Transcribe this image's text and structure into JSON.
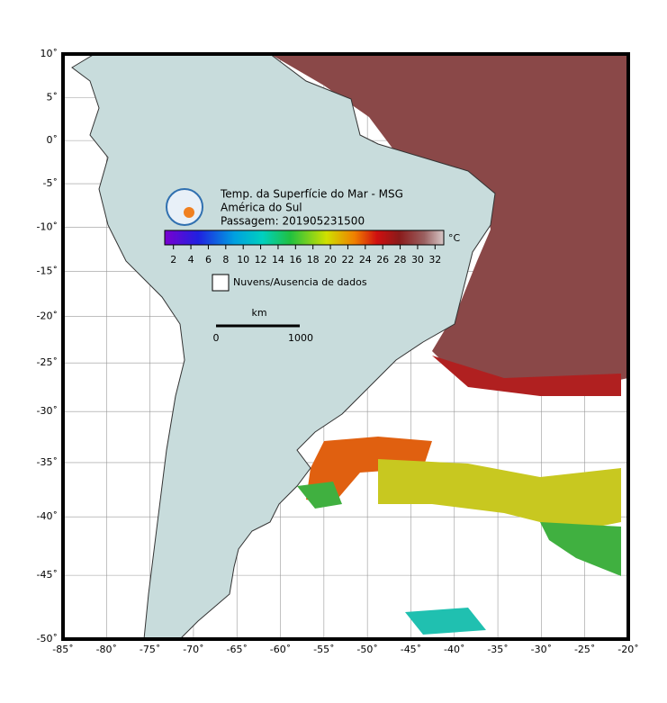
{
  "map": {
    "title_lines": [
      "Temp. da Superfície do Mar - MSG",
      "América do Sul",
      "Passagem: 201905231500"
    ],
    "colorbar": {
      "lim": [
        1,
        33
      ],
      "ticks": [
        2,
        4,
        6,
        8,
        10,
        12,
        14,
        16,
        18,
        20,
        22,
        24,
        26,
        28,
        30,
        32
      ],
      "unit": "°C"
    },
    "legend": "Nuvens/Ausencia de dados",
    "scale": {
      "unit": "km",
      "labels": [
        "0",
        "1000"
      ]
    },
    "xlim": [
      -85,
      -20
    ],
    "ylim": [
      -50,
      10
    ],
    "xticks": [
      {
        "value": -85,
        "label": "-85˚"
      },
      {
        "value": -80,
        "label": "-80˚"
      },
      {
        "value": -75,
        "label": "-75˚"
      },
      {
        "value": -70,
        "label": "-70˚"
      },
      {
        "value": -65,
        "label": "-65˚"
      },
      {
        "value": -60,
        "label": "-60˚"
      },
      {
        "value": -55,
        "label": "-55˚"
      },
      {
        "value": -50,
        "label": "-50˚"
      },
      {
        "value": -45,
        "label": "-45˚"
      },
      {
        "value": -40,
        "label": "-40˚"
      },
      {
        "value": -35,
        "label": "-35˚"
      },
      {
        "value": -30,
        "label": "-30˚"
      },
      {
        "value": -25,
        "label": "-25˚"
      },
      {
        "value": -20,
        "label": "-20˚"
      }
    ],
    "yticks": [
      {
        "value": 10,
        "label": "10˚"
      },
      {
        "value": 5,
        "label": "5˚"
      },
      {
        "value": 0,
        "label": "0˚"
      },
      {
        "value": -5,
        "label": "-5˚"
      },
      {
        "value": -10,
        "label": "-10˚"
      },
      {
        "value": -15,
        "label": "-15˚"
      },
      {
        "value": -20,
        "label": "-20˚"
      },
      {
        "value": -25,
        "label": "-25˚"
      },
      {
        "value": -30,
        "label": "-30˚"
      },
      {
        "value": -35,
        "label": "-35˚"
      },
      {
        "value": -40,
        "label": "-40˚"
      },
      {
        "value": -45,
        "label": "-45˚"
      },
      {
        "value": -50,
        "label": "-50˚"
      }
    ]
  }
}
